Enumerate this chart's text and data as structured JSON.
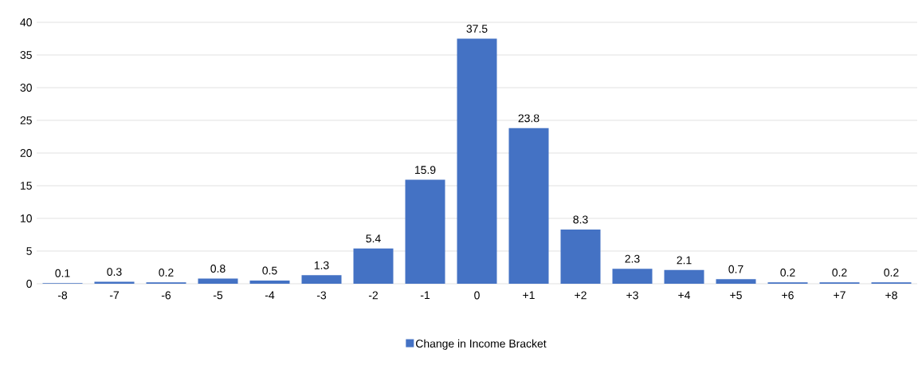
{
  "chart_data": {
    "type": "bar",
    "categories": [
      "-8",
      "-7",
      "-6",
      "-5",
      "-4",
      "-3",
      "-2",
      "-1",
      "0",
      "+1",
      "+2",
      "+3",
      "+4",
      "+5",
      "+6",
      "+7",
      "+8"
    ],
    "series": [
      {
        "name": "Change in Income Bracket",
        "color": "#4472c4",
        "values": [
          0.1,
          0.3,
          0.2,
          0.8,
          0.5,
          1.3,
          5.4,
          15.9,
          37.5,
          23.8,
          8.3,
          2.3,
          2.1,
          0.7,
          0.2,
          0.2,
          0.2
        ]
      }
    ],
    "ylim": [
      0,
      40
    ],
    "yticks": [
      0,
      5,
      10,
      15,
      20,
      25,
      30,
      35,
      40
    ],
    "grid": "y",
    "legend": "bottom",
    "data_labels": true
  }
}
